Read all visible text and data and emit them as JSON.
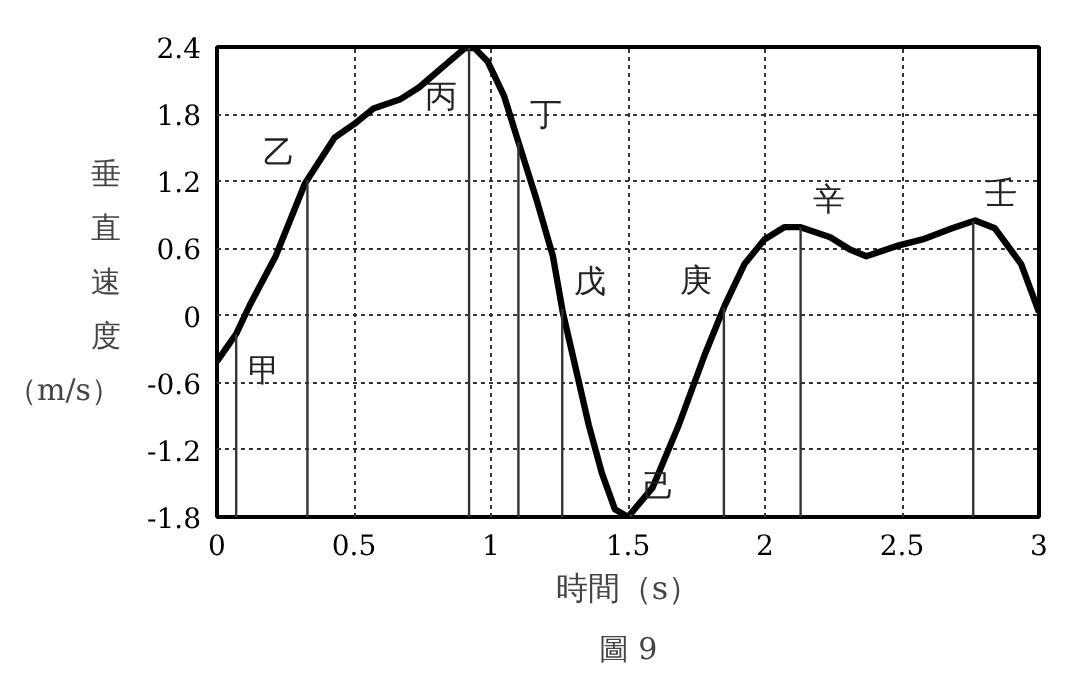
{
  "chart_data": {
    "type": "line",
    "xlabel": "時間（s）",
    "ylabel": "垂直速度（m/s）",
    "x": [
      0,
      0.071,
      0.119,
      0.214,
      0.321,
      0.429,
      0.5,
      0.571,
      0.667,
      0.738,
      0.833,
      0.905,
      0.94,
      0.988,
      1.048,
      1.095,
      1.167,
      1.226,
      1.262,
      1.31,
      1.357,
      1.405,
      1.452,
      1.5,
      1.589,
      1.685,
      1.78,
      1.853,
      1.925,
      1.998,
      2.07,
      2.13,
      2.238,
      2.31,
      2.37,
      2.478,
      2.575,
      2.683,
      2.767,
      2.839,
      2.935,
      3.0
    ],
    "series": [
      {
        "color": "#000000",
        "values": [
          -0.41,
          -0.16,
          0.09,
          0.53,
          1.18,
          1.59,
          1.71,
          1.85,
          1.93,
          2.04,
          2.24,
          2.39,
          2.39,
          2.27,
          1.96,
          1.59,
          1.03,
          0.53,
          0.03,
          -0.48,
          -0.98,
          -1.41,
          -1.73,
          -1.8,
          -1.54,
          -0.98,
          -0.35,
          0.09,
          0.46,
          0.68,
          0.79,
          0.79,
          0.7,
          0.59,
          0.53,
          0.62,
          0.68,
          0.78,
          0.85,
          0.78,
          0.46,
          0.03
        ]
      }
    ],
    "xlim": [
      0,
      3
    ],
    "xticks": [
      0,
      0.5,
      1,
      1.5,
      2,
      2.5,
      3
    ],
    "ylim": [
      -1.8,
      2.4
    ],
    "yticks": [
      -1.8,
      -1.2,
      -0.6,
      0,
      0.6,
      1.2,
      1.8,
      2.4
    ],
    "grid": true,
    "marker": "none",
    "line_style": "solid",
    "ref_lines": [
      {
        "axis": "x",
        "value": 0.07,
        "color": "#333333",
        "label": "甲"
      },
      {
        "axis": "x",
        "value": 0.33,
        "color": "#333333",
        "label": "乙"
      },
      {
        "axis": "x",
        "value": 0.92,
        "color": "#333333",
        "label": "丙"
      },
      {
        "axis": "x",
        "value": 1.1,
        "color": "#333333",
        "label": "丁"
      },
      {
        "axis": "x",
        "value": 1.26,
        "color": "#333333",
        "label": "戊"
      },
      {
        "axis": "x",
        "value": 1.51,
        "color": "#333333",
        "label": "己"
      },
      {
        "axis": "x",
        "value": 1.85,
        "color": "#333333",
        "label": "庚"
      },
      {
        "axis": "x",
        "value": 2.13,
        "color": "#333333",
        "label": "辛"
      },
      {
        "axis": "x",
        "value": 2.76,
        "color": "#333333",
        "label": "壬"
      }
    ],
    "annotations": [
      "圖 9"
    ]
  }
}
